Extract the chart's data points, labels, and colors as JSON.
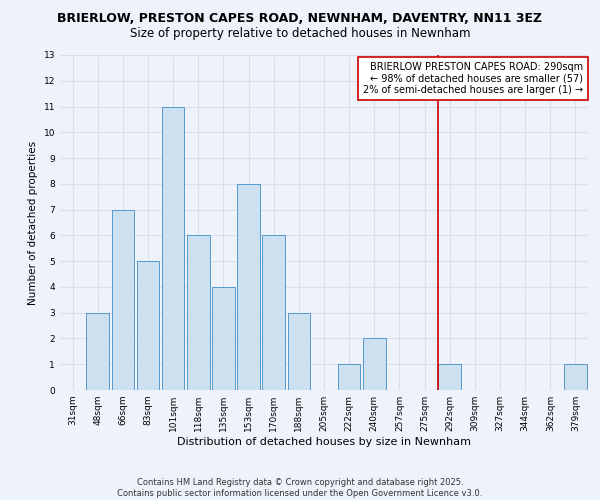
{
  "title": "BRIERLOW, PRESTON CAPES ROAD, NEWNHAM, DAVENTRY, NN11 3EZ",
  "subtitle": "Size of property relative to detached houses in Newnham",
  "xlabel": "Distribution of detached houses by size in Newnham",
  "ylabel": "Number of detached properties",
  "bar_labels": [
    "31sqm",
    "48sqm",
    "66sqm",
    "83sqm",
    "101sqm",
    "118sqm",
    "135sqm",
    "153sqm",
    "170sqm",
    "188sqm",
    "205sqm",
    "222sqm",
    "240sqm",
    "257sqm",
    "275sqm",
    "292sqm",
    "309sqm",
    "327sqm",
    "344sqm",
    "362sqm",
    "379sqm"
  ],
  "bar_values": [
    0,
    3,
    7,
    5,
    11,
    6,
    4,
    8,
    6,
    3,
    0,
    1,
    2,
    0,
    0,
    1,
    0,
    0,
    0,
    0,
    1
  ],
  "bar_color": "#cce0f0",
  "bar_edgecolor": "#5599cc",
  "vline_index": 15,
  "vline_color": "#cc0000",
  "ylim": [
    0,
    13
  ],
  "yticks": [
    0,
    1,
    2,
    3,
    4,
    5,
    6,
    7,
    8,
    9,
    10,
    11,
    12,
    13
  ],
  "legend_title": "BRIERLOW PRESTON CAPES ROAD: 290sqm",
  "legend_line1": "← 98% of detached houses are smaller (57)",
  "legend_line2": "2% of semi-detached houses are larger (1) →",
  "legend_box_color": "#ffffff",
  "legend_box_edgecolor": "#cc0000",
  "footnote1": "Contains HM Land Registry data © Crown copyright and database right 2025.",
  "footnote2": "Contains public sector information licensed under the Open Government Licence v3.0.",
  "background_color": "#eef2fa",
  "grid_color": "#d8dff0",
  "title_fontsize": 9,
  "subtitle_fontsize": 8.5,
  "xlabel_fontsize": 8,
  "ylabel_fontsize": 7.5,
  "tick_fontsize": 6.5,
  "legend_fontsize": 7,
  "footnote_fontsize": 6
}
